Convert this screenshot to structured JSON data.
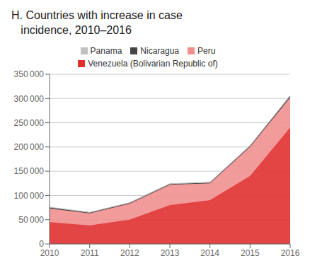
{
  "chart_data": {
    "type": "area",
    "stacked": true,
    "title": [
      "H. Countries with increase in case",
      "   incidence, 2010–2016"
    ],
    "x": [
      2010,
      2011,
      2012,
      2013,
      2014,
      2015,
      2016
    ],
    "series": [
      {
        "name": "Venezuela (Bolivarian Republic of)",
        "color": "#e03030",
        "values": [
          45000,
          38000,
          50000,
          80000,
          90000,
          140000,
          240000
        ]
      },
      {
        "name": "Peru",
        "color": "#f09090",
        "values": [
          28000,
          25000,
          33000,
          42000,
          35000,
          60000,
          62000
        ]
      },
      {
        "name": "Nicaragua",
        "color": "#444444",
        "values": [
          2000,
          1500,
          1500,
          1500,
          1500,
          2000,
          3000
        ]
      },
      {
        "name": "Panama",
        "color": "#c0c0c0",
        "values": [
          1000,
          800,
          800,
          800,
          800,
          900,
          1000
        ]
      }
    ],
    "xlim": [
      2010,
      2016
    ],
    "xticks": [
      2010,
      2011,
      2012,
      2013,
      2014,
      2015,
      2016
    ],
    "ylim": [
      0,
      350000
    ],
    "yticks": [
      0,
      {
        "value": 50000,
        "label": "50 000"
      },
      {
        "value": 100000,
        "label": "100 000"
      },
      {
        "value": 150000,
        "label": "150 000"
      },
      {
        "value": 200000,
        "label": "200 000"
      },
      {
        "value": 250000,
        "label": "250 000"
      },
      {
        "value": 300000,
        "label": "300 000"
      },
      {
        "value": 350000,
        "label": "350 000"
      }
    ],
    "grid": true,
    "legend": "top"
  }
}
